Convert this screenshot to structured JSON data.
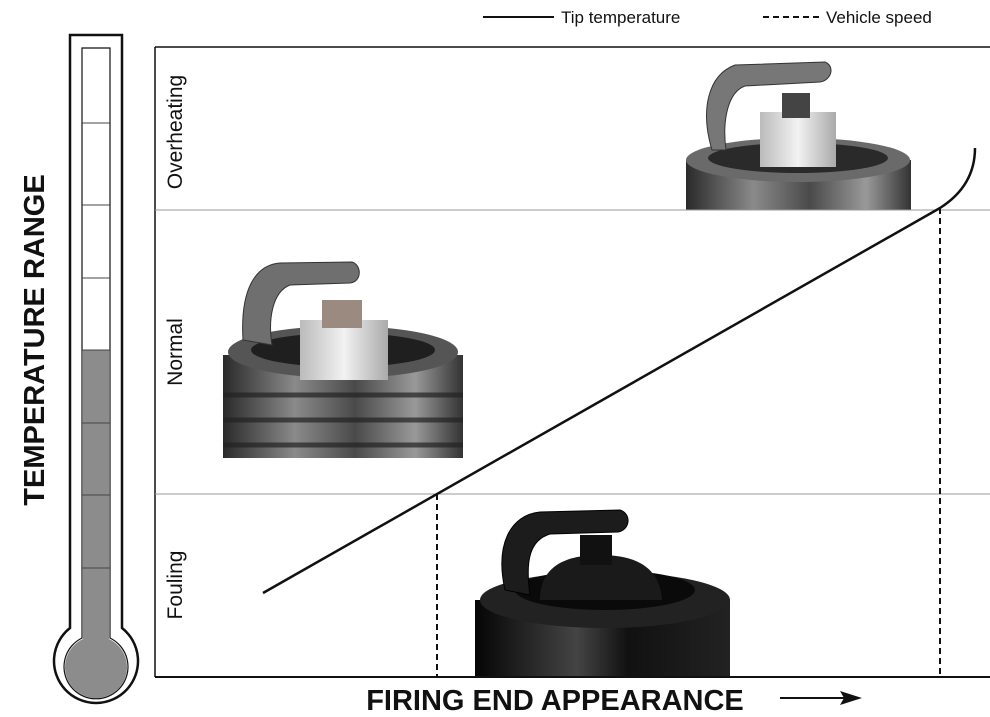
{
  "legend": {
    "items": [
      {
        "label": "Tip temperature"
      },
      {
        "label": "Vehicle speed"
      }
    ]
  },
  "zones": [
    {
      "label": "Overheating"
    },
    {
      "label": "Normal"
    },
    {
      "label": "Fouling"
    }
  ],
  "axes": {
    "y_title": "TEMPERATURE RANGE",
    "x_title": "FIRING END APPEARANCE"
  }
}
